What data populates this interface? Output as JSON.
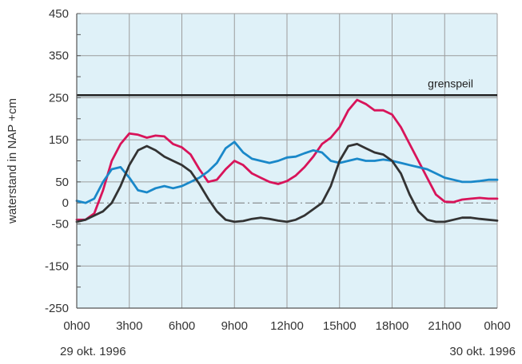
{
  "chart_data": {
    "type": "line",
    "ylabel": "waterstand in NAP  +cm",
    "ylim": [
      -250,
      450
    ],
    "y_ticks": [
      450,
      350,
      250,
      150,
      50,
      0,
      -50,
      -150,
      -250
    ],
    "x_range": [
      0,
      24
    ],
    "x_tick_labels": [
      "0h00",
      "3h00",
      "6h00",
      "9h00",
      "12h00",
      "15h00",
      "18h00",
      "21h00",
      "0h00"
    ],
    "date_start": "29 okt. 1996",
    "date_end": "30 okt. 1996",
    "grid": true,
    "reference_line": {
      "label": "grenspeil",
      "y": 256
    },
    "zero_line": {
      "y": 0,
      "style": "dash-dot"
    },
    "colors": {
      "plot_background": "#dff1f8",
      "grid": "#9c9c9c",
      "axis": "#555555"
    },
    "series": [
      {
        "color": "#d8145a",
        "x": [
          0,
          0.5,
          1,
          1.5,
          2,
          2.5,
          3,
          3.5,
          4,
          4.5,
          5,
          5.5,
          6,
          6.5,
          7,
          7.5,
          8,
          8.5,
          9,
          9.5,
          10,
          10.5,
          11,
          11.5,
          12,
          12.5,
          13,
          13.5,
          14,
          14.5,
          15,
          15.5,
          16,
          16.5,
          17,
          17.5,
          18,
          18.5,
          19,
          19.5,
          20,
          20.5,
          21,
          21.5,
          22,
          22.5,
          23,
          23.5,
          24
        ],
        "y": [
          -40,
          -40,
          -25,
          30,
          100,
          140,
          165,
          162,
          155,
          160,
          158,
          140,
          132,
          115,
          80,
          50,
          55,
          80,
          100,
          90,
          70,
          60,
          50,
          45,
          52,
          65,
          85,
          110,
          140,
          155,
          180,
          220,
          245,
          235,
          220,
          220,
          210,
          180,
          140,
          100,
          60,
          20,
          3,
          2,
          8,
          10,
          12,
          10,
          10
        ]
      },
      {
        "color": "#1a88c9",
        "x": [
          0,
          0.5,
          1,
          1.5,
          2,
          2.5,
          3,
          3.5,
          4,
          4.5,
          5,
          5.5,
          6,
          6.5,
          7,
          7.5,
          8,
          8.5,
          9,
          9.5,
          10,
          10.5,
          11,
          11.5,
          12,
          12.5,
          13,
          13.5,
          14,
          14.5,
          15,
          15.5,
          16,
          16.5,
          17,
          17.5,
          18,
          18.5,
          19,
          19.5,
          20,
          20.5,
          21,
          21.5,
          22,
          22.5,
          23,
          23.5,
          24
        ],
        "y": [
          5,
          0,
          10,
          50,
          80,
          85,
          60,
          30,
          25,
          35,
          40,
          35,
          40,
          50,
          60,
          75,
          95,
          130,
          145,
          120,
          105,
          100,
          95,
          100,
          108,
          110,
          118,
          125,
          120,
          100,
          95,
          100,
          105,
          100,
          100,
          103,
          100,
          95,
          90,
          85,
          80,
          70,
          60,
          55,
          50,
          50,
          52,
          55,
          55
        ]
      },
      {
        "color": "#333333",
        "x": [
          0,
          0.5,
          1,
          1.5,
          2,
          2.5,
          3,
          3.5,
          4,
          4.5,
          5,
          5.5,
          6,
          6.5,
          7,
          7.5,
          8,
          8.5,
          9,
          9.5,
          10,
          10.5,
          11,
          11.5,
          12,
          12.5,
          13,
          13.5,
          14,
          14.5,
          15,
          15.5,
          16,
          16.5,
          17,
          17.5,
          18,
          18.5,
          19,
          19.5,
          20,
          20.5,
          21,
          21.5,
          22,
          22.5,
          23,
          23.5,
          24
        ],
        "y": [
          -45,
          -40,
          -30,
          -20,
          0,
          40,
          90,
          125,
          135,
          125,
          110,
          100,
          90,
          75,
          45,
          10,
          -20,
          -40,
          -45,
          -43,
          -38,
          -35,
          -38,
          -42,
          -45,
          -40,
          -30,
          -15,
          0,
          40,
          100,
          135,
          140,
          130,
          120,
          115,
          100,
          70,
          20,
          -20,
          -40,
          -45,
          -45,
          -40,
          -35,
          -35,
          -38,
          -40,
          -42
        ]
      }
    ]
  }
}
